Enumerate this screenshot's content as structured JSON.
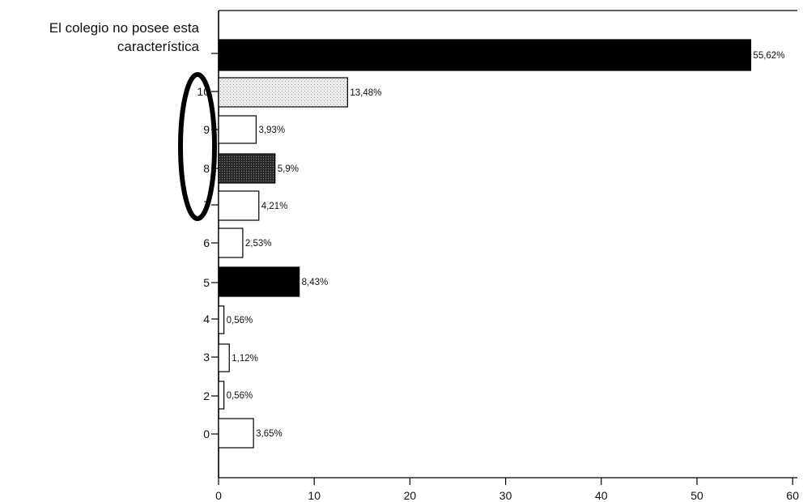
{
  "chart_data": {
    "type": "bar",
    "orientation": "horizontal",
    "categories": [
      "El colegio no posee esta característica",
      "10",
      "9",
      "8",
      "7",
      "6",
      "5",
      "4",
      "3",
      "2",
      "0"
    ],
    "category_label_lines": [
      [
        "El colegio no posee esta",
        "característica"
      ],
      [
        "10"
      ],
      [
        "9"
      ],
      [
        "8"
      ],
      [
        "7"
      ],
      [
        "6"
      ],
      [
        "5"
      ],
      [
        "4"
      ],
      [
        "3"
      ],
      [
        "2"
      ],
      [
        "0"
      ]
    ],
    "values": [
      55.62,
      13.48,
      3.93,
      5.9,
      4.21,
      2.53,
      8.43,
      0.56,
      1.12,
      0.56,
      3.65
    ],
    "value_labels": [
      "55,62%",
      "13,48%",
      "3,93%",
      "5,9%",
      "4,21%",
      "2,53%",
      "8,43%",
      "0,56%",
      "1,12%",
      "0,56%",
      "3,65%"
    ],
    "bar_fills": [
      "black",
      "light-stipple",
      "white",
      "dark-stipple",
      "white",
      "white",
      "black",
      "white",
      "white",
      "white",
      "white"
    ],
    "xlim": [
      0,
      60
    ],
    "x_ticks": [
      "0",
      "10",
      "20",
      "30",
      "40",
      "50",
      "60"
    ],
    "x_tick_values": [
      0,
      10,
      20,
      30,
      40,
      50,
      60
    ],
    "title": "",
    "xlabel": "",
    "ylabel": "",
    "grid": false,
    "legend": "none",
    "annotation": "ellipse-around-7-to-10"
  },
  "colors": {
    "bar_black": "#000000",
    "bar_light": "#e6e6e6",
    "bar_dark": "#303030",
    "bar_white": "#ffffff",
    "stroke": "#000000"
  }
}
